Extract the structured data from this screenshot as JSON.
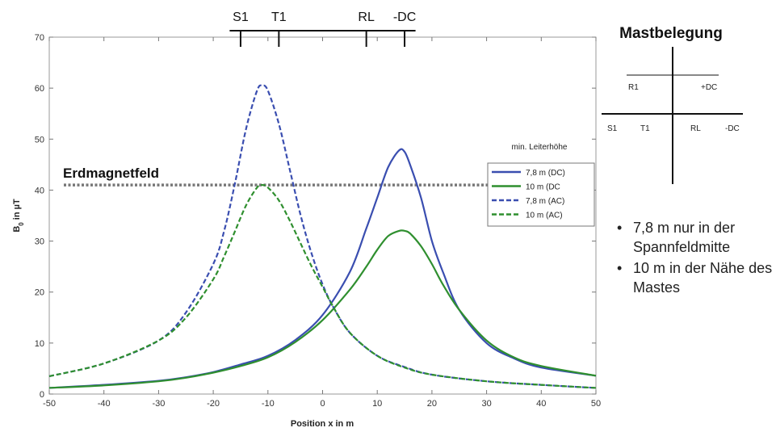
{
  "chart_data": {
    "type": "line",
    "title": "",
    "xlabel": "Position x in m",
    "ylabel": "B",
    "ylabel_subscript": "0",
    "ylabel_suffix": " in µT",
    "xlim": [
      -50,
      50
    ],
    "ylim": [
      0,
      70
    ],
    "xticks": [
      -50,
      -40,
      -30,
      -20,
      -10,
      0,
      10,
      20,
      30,
      40,
      50
    ],
    "yticks": [
      0,
      10,
      20,
      30,
      40,
      50,
      60,
      70
    ],
    "grid": false,
    "legend": {
      "title": "min. Leiterhöhe",
      "placement": "right"
    },
    "series": [
      {
        "name": "7,8 m (DC)",
        "color": "#3a4eb0",
        "style": "solid",
        "x": [
          -50,
          -40,
          -30,
          -25,
          -20,
          -15,
          -10,
          -5,
          0,
          5,
          8,
          10,
          12,
          14,
          15,
          16,
          18,
          20,
          22,
          25,
          30,
          35,
          40,
          50
        ],
        "y": [
          1.2,
          1.8,
          2.6,
          3.3,
          4.3,
          5.8,
          7.5,
          10.6,
          15.5,
          24,
          32.5,
          38.5,
          44.5,
          47.8,
          47.5,
          45,
          38.5,
          30,
          24,
          16.5,
          10,
          7,
          5.2,
          3.6
        ]
      },
      {
        "name": "10 m (DC",
        "color": "#2f8f2f",
        "style": "solid",
        "x": [
          -50,
          -40,
          -30,
          -25,
          -20,
          -15,
          -10,
          -5,
          0,
          5,
          8,
          10,
          12,
          14,
          15,
          16,
          18,
          20,
          22,
          25,
          30,
          35,
          40,
          50
        ],
        "y": [
          1.2,
          1.7,
          2.5,
          3.2,
          4.2,
          5.5,
          7.2,
          10.2,
          14.5,
          20.5,
          25,
          28.3,
          31,
          32,
          32,
          31.5,
          29,
          25.5,
          21.5,
          16.5,
          10.5,
          7.2,
          5.5,
          3.6
        ]
      },
      {
        "name": "7,8 m (AC)",
        "color": "#3a4eb0",
        "style": "dashed",
        "x": [
          -50,
          -40,
          -30,
          -25,
          -20,
          -18,
          -16,
          -14,
          -12,
          -11,
          -10,
          -8,
          -6,
          -4,
          -2,
          0,
          2,
          5,
          10,
          15,
          20,
          30,
          40,
          50
        ],
        "y": [
          3.5,
          6,
          10.5,
          16,
          25.5,
          32,
          41.5,
          52,
          59.5,
          60.5,
          59.5,
          53,
          44,
          35,
          27.5,
          21.5,
          17,
          12,
          7.5,
          5.3,
          3.8,
          2.5,
          1.8,
          1.2
        ]
      },
      {
        "name": "10 m (AC)",
        "color": "#2f8f2f",
        "style": "dashed",
        "x": [
          -50,
          -40,
          -30,
          -25,
          -20,
          -18,
          -16,
          -14,
          -12,
          -11,
          -10,
          -8,
          -6,
          -4,
          -2,
          0,
          2,
          5,
          10,
          15,
          20,
          30,
          40,
          50
        ],
        "y": [
          3.5,
          6,
          10.5,
          15,
          22.5,
          27,
          32,
          37,
          40.5,
          41,
          40.5,
          38,
          34,
          29.5,
          25,
          21,
          17,
          12,
          7.5,
          5.2,
          3.8,
          2.5,
          1.8,
          1.2
        ]
      }
    ],
    "reference_line": {
      "label": "Erdmagnetfeld",
      "y": 41,
      "color": "#777777"
    },
    "conductors": [
      {
        "label": "S1",
        "x": -15
      },
      {
        "label": "T1",
        "x": -8
      },
      {
        "label": "RL",
        "x": 8
      },
      {
        "label": "-DC",
        "x": 15
      }
    ],
    "conductor_bar_range": [
      -17,
      17
    ]
  },
  "mast": {
    "title": "Mastbelegung",
    "labels": [
      "R1",
      "+DC",
      "S1",
      "T1",
      "RL",
      "-DC"
    ]
  },
  "notes": [
    "7,8 m nur in der Spannfeldmitte",
    "10 m in der Nähe des Mastes"
  ]
}
